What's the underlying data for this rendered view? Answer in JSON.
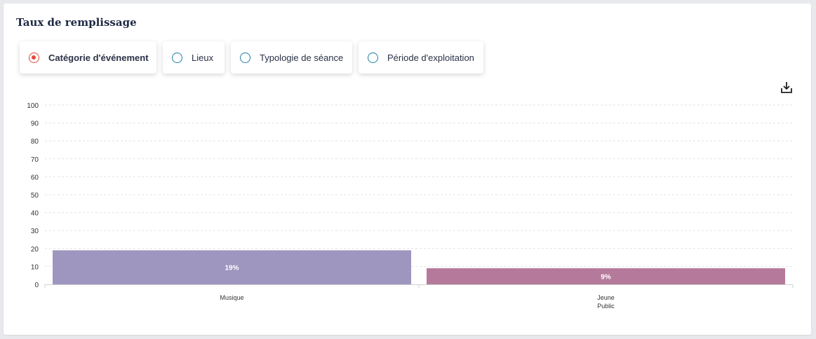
{
  "title": "Taux de remplissage",
  "options": [
    {
      "label": "Catégorie d'événement",
      "selected": true
    },
    {
      "label": "Lieux",
      "selected": false
    },
    {
      "label": "Typologie de séance",
      "selected": false
    },
    {
      "label": "Période d'exploitation",
      "selected": false
    }
  ],
  "colors": {
    "accent": "#e4493b",
    "radio": "#1b7fa6"
  },
  "chart_data": {
    "type": "bar",
    "categories": [
      [
        "Musique"
      ],
      [
        "Jeune",
        "Public"
      ]
    ],
    "values": [
      19,
      9
    ],
    "data_labels": [
      "19%",
      "9%"
    ],
    "colors": [
      "#9e96bf",
      "#b57a9b"
    ],
    "ylim": [
      0,
      100
    ],
    "yticks": [
      0,
      10,
      20,
      30,
      40,
      50,
      60,
      70,
      80,
      90,
      100
    ],
    "grid": true
  }
}
